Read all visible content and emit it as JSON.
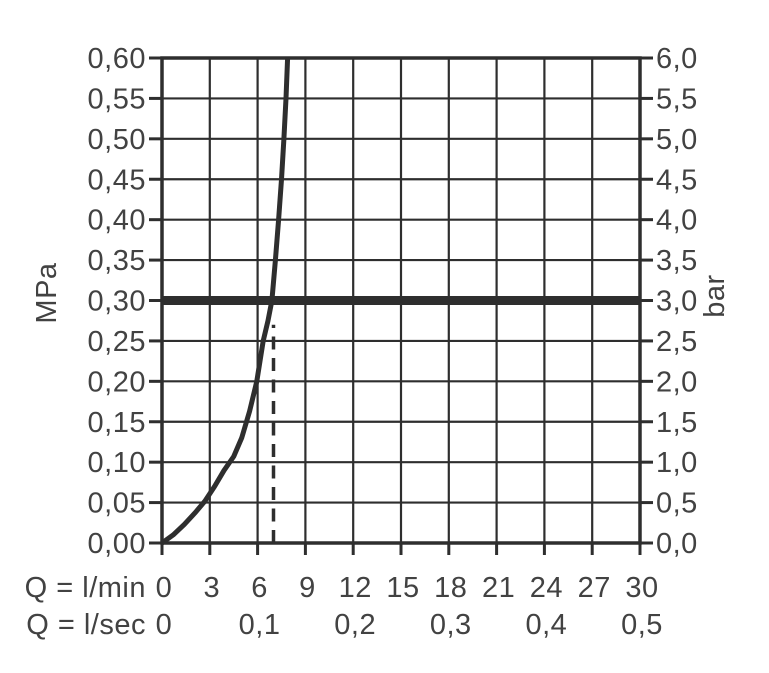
{
  "chart_data": {
    "type": "line",
    "title": "",
    "description": "Flow rate vs pressure diagram",
    "grid": {
      "on": true,
      "x_step_lmin": 3,
      "y_step_mpa": 0.05
    },
    "x_axis_primary": {
      "label": "Q = l/min",
      "range": [
        0,
        30
      ],
      "values": [
        0,
        3,
        6,
        9,
        12,
        15,
        18,
        21,
        24,
        27,
        30
      ],
      "labels": [
        "0",
        "3",
        "6",
        "9",
        "12",
        "15",
        "18",
        "21",
        "24",
        "27",
        "30"
      ]
    },
    "x_axis_secondary": {
      "label": "Q = l/sec",
      "positions_lmin": [
        0,
        6,
        12,
        18,
        24,
        30
      ],
      "labels": [
        "0",
        "0,1",
        "0,2",
        "0,3",
        "0,4",
        "0,5"
      ]
    },
    "y_axis_left": {
      "label": "MPa",
      "range": [
        0,
        0.6
      ],
      "values": [
        0.6,
        0.55,
        0.5,
        0.45,
        0.4,
        0.35,
        0.3,
        0.25,
        0.2,
        0.15,
        0.1,
        0.05,
        0.0
      ],
      "labels": [
        "0,60",
        "0,55",
        "0,50",
        "0,45",
        "0,40",
        "0,35",
        "0,30",
        "0,25",
        "0,20",
        "0,15",
        "0,10",
        "0,05",
        "0,00"
      ]
    },
    "y_axis_right": {
      "label": "bar",
      "range": [
        0,
        6
      ],
      "values": [
        6.0,
        5.5,
        5.0,
        4.5,
        4.0,
        3.5,
        3.0,
        2.5,
        2.0,
        1.5,
        1.0,
        0.5,
        0.0
      ],
      "labels": [
        "6,0",
        "5,5",
        "5,0",
        "4,5",
        "4,0",
        "3,5",
        "3,0",
        "2,5",
        "2,0",
        "1,5",
        "1,0",
        "0,5",
        "0,0"
      ]
    },
    "series": [
      {
        "name": "flow-pressure-curve",
        "style": "solid",
        "x_unit": "l/min",
        "y_unit": "MPa",
        "points": [
          [
            0,
            0
          ],
          [
            0.7,
            0.01
          ],
          [
            1.4,
            0.023
          ],
          [
            2.1,
            0.038
          ],
          [
            2.7,
            0.052
          ],
          [
            3.3,
            0.07
          ],
          [
            3.9,
            0.09
          ],
          [
            4.5,
            0.107
          ],
          [
            5.0,
            0.13
          ],
          [
            5.5,
            0.163
          ],
          [
            5.95,
            0.2
          ],
          [
            6.35,
            0.25
          ],
          [
            6.65,
            0.275
          ],
          [
            6.9,
            0.3
          ],
          [
            7.12,
            0.35
          ],
          [
            7.32,
            0.4
          ],
          [
            7.5,
            0.45
          ],
          [
            7.65,
            0.5
          ],
          [
            7.78,
            0.55
          ],
          [
            7.88,
            0.6
          ]
        ]
      },
      {
        "name": "reference-pressure-line",
        "style": "thick",
        "note": "horizontal reference at 0.30 MPa / 3.0 bar",
        "points": [
          [
            0,
            0.3
          ],
          [
            30,
            0.3
          ]
        ]
      },
      {
        "name": "flow-marker-dashed-line",
        "style": "dashed",
        "note": "vertical marker at ~7 l/min up to curve",
        "points": [
          [
            7,
            0
          ],
          [
            7,
            0.27
          ]
        ]
      }
    ],
    "colors": {
      "line": "#2e2e2e",
      "text": "#424242",
      "background": "#ffffff"
    }
  }
}
